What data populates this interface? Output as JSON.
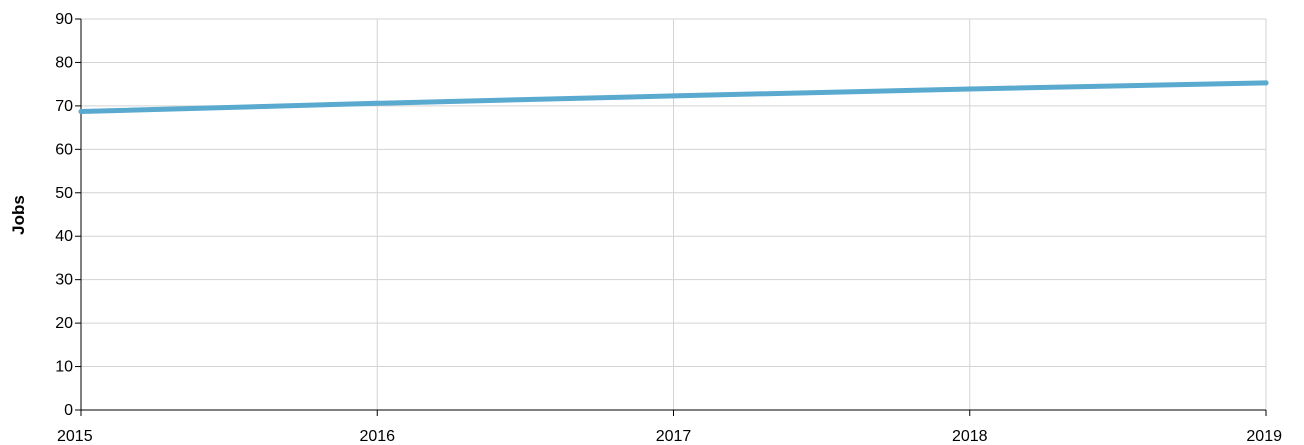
{
  "chart_data": {
    "type": "line",
    "title": "",
    "xlabel": "",
    "ylabel": "Jobs",
    "x": [
      "2015",
      "2016",
      "2017",
      "2018",
      "2019"
    ],
    "xlim": [
      2015,
      2019
    ],
    "ylim": [
      0,
      90
    ],
    "yticks": [
      "0",
      "10",
      "20",
      "30",
      "40",
      "50",
      "60",
      "70",
      "80",
      "90"
    ],
    "grid": true,
    "legend": "none",
    "series": [
      {
        "name": "",
        "values": [
          68.7,
          70.6,
          72.3,
          73.9,
          75.3
        ],
        "color": "#5aa9cf"
      }
    ]
  }
}
